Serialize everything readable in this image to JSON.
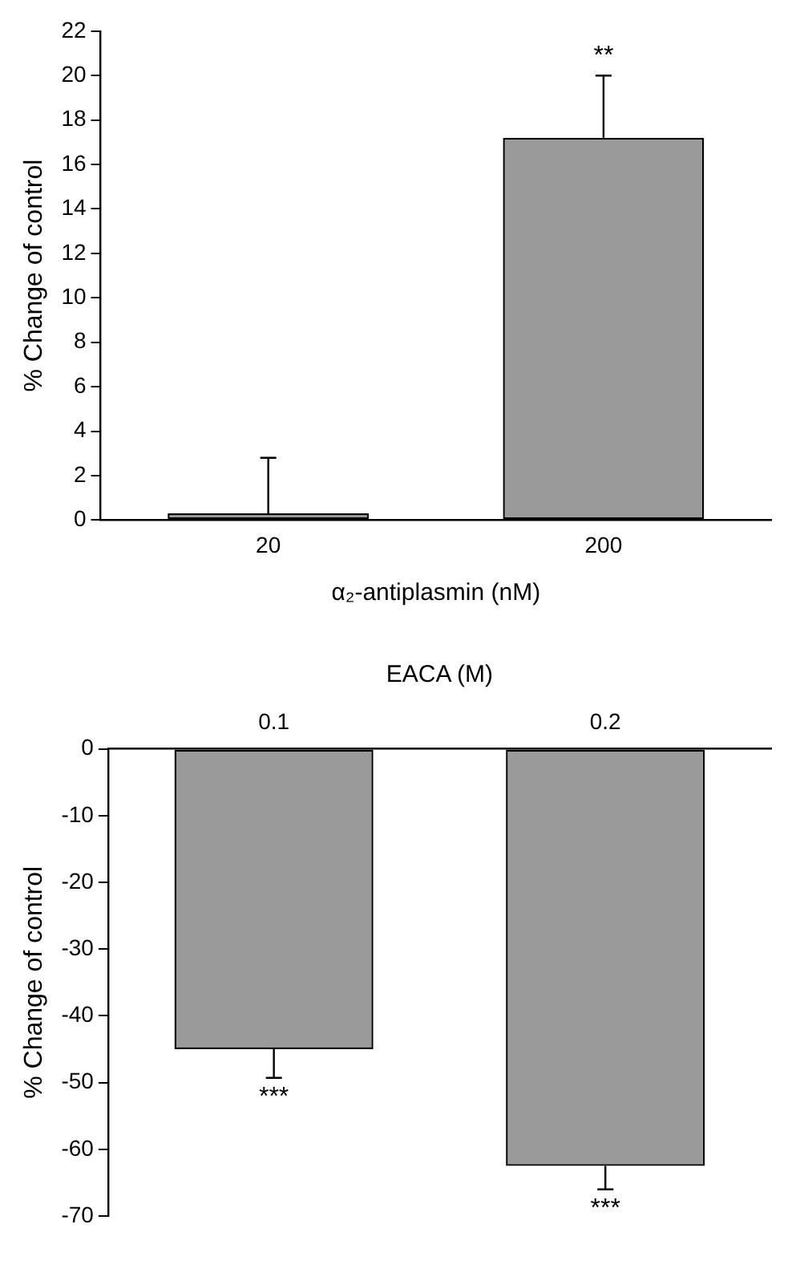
{
  "chart_data": [
    {
      "type": "bar",
      "xlabel": "α₂-antiplasmin (nM)",
      "ylabel": "% Change of control",
      "categories": [
        "20",
        "200"
      ],
      "values": [
        0.3,
        17.2
      ],
      "color": "#9a9a9a",
      "errors": [
        [
          0.3,
          2.8
        ],
        [
          17.2,
          20
        ]
      ],
      "ylim": [
        0,
        22
      ],
      "yticks": [
        0,
        2,
        4,
        6,
        8,
        10,
        12,
        14,
        16,
        18,
        20,
        22
      ],
      "grid": false,
      "annotations": [
        {
          "text": "**",
          "x": "200",
          "y": 20
        }
      ]
    },
    {
      "type": "bar",
      "xlabel": "EACA (M)",
      "ylabel": "% Change of control",
      "categories": [
        "0.1",
        "0.2"
      ],
      "values": [
        -45,
        -62.5
      ],
      "color": "#9a9a9a",
      "errors": [
        [
          -49.3,
          -45
        ],
        [
          -66,
          -62.5
        ]
      ],
      "ylim": [
        -70,
        0
      ],
      "yticks": [
        -70,
        -60,
        -50,
        -40,
        -30,
        -20,
        -10,
        0
      ],
      "grid": false,
      "annotations": [
        {
          "text": "***",
          "x": "0.1",
          "y": -49.3
        },
        {
          "text": "***",
          "x": "0.2",
          "y": -66
        }
      ]
    }
  ]
}
